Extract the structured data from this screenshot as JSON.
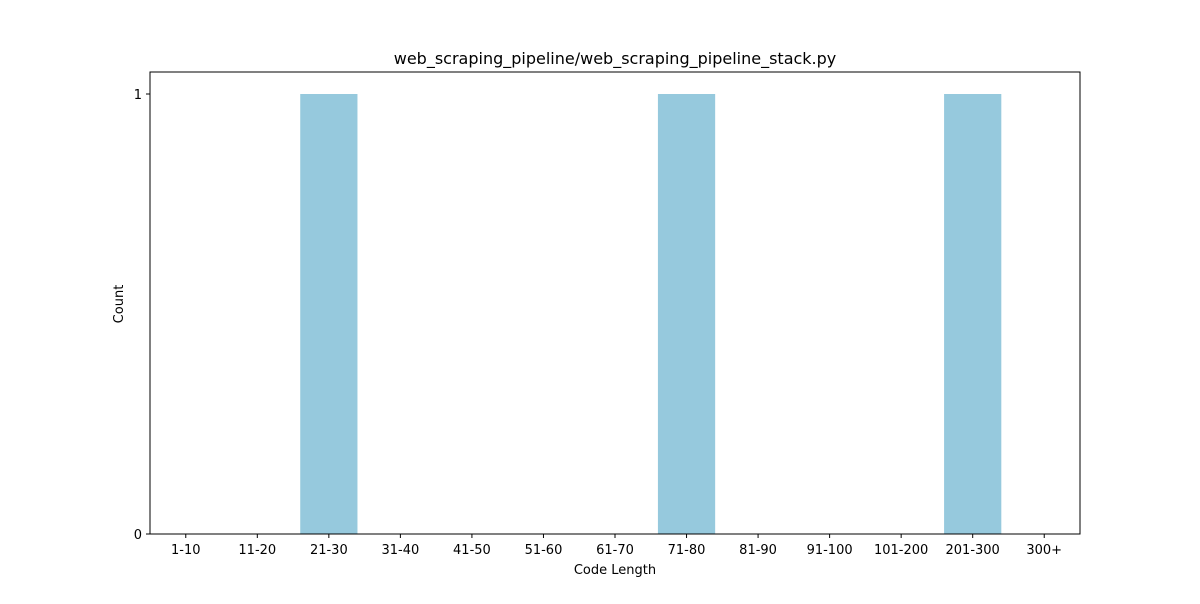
{
  "chart_data": {
    "type": "bar",
    "title": "web_scraping_pipeline/web_scraping_pipeline_stack.py",
    "xlabel": "Code Length",
    "ylabel": "Count",
    "categories": [
      "1-10",
      "11-20",
      "21-30",
      "31-40",
      "41-50",
      "51-60",
      "61-70",
      "71-80",
      "81-90",
      "91-100",
      "101-200",
      "201-300",
      "300+"
    ],
    "values": [
      0,
      0,
      1,
      0,
      0,
      0,
      0,
      1,
      0,
      0,
      0,
      1,
      0
    ],
    "ylim": [
      0,
      1.05
    ],
    "yticks": [
      0,
      1
    ],
    "grid": false,
    "colors": {
      "bar": "#96c9dd",
      "axis": "#000000",
      "background": "#ffffff"
    }
  }
}
